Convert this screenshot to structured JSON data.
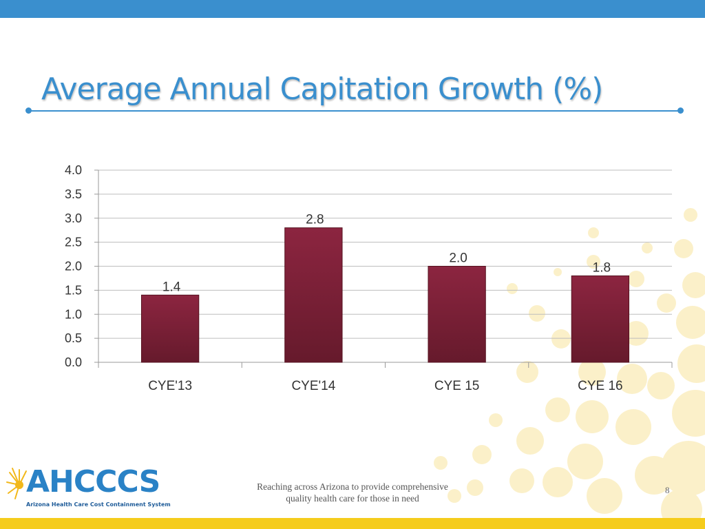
{
  "slide": {
    "title": "Average Annual Capitation Growth (%)",
    "footer_line1": "Reaching across Arizona to provide comprehensive",
    "footer_line2": "quality health care for those in need",
    "page_number": "8"
  },
  "logo": {
    "name": "AHCCCS",
    "tagline": "Arizona Health Care Cost Containment System",
    "icon": "sunburst-icon"
  },
  "colors": {
    "accent_blue": "#3a8fce",
    "accent_yellow": "#f5cc1c",
    "bar": "#7a1f35"
  },
  "chart_data": {
    "type": "bar",
    "categories": [
      "CYE'13",
      "CYE'14",
      "CYE 15",
      "CYE 16"
    ],
    "values": [
      1.4,
      2.8,
      2.0,
      1.8
    ],
    "data_labels": [
      "1.4",
      "2.8",
      "2.0",
      "1.8"
    ],
    "ylim": [
      0,
      4
    ],
    "y_ticks": [
      "0.0",
      "0.5",
      "1.0",
      "1.5",
      "2.0",
      "2.5",
      "3.0",
      "3.5",
      "4.0"
    ],
    "title": "",
    "xlabel": "",
    "ylabel": "",
    "grid": true,
    "legend": "none"
  }
}
